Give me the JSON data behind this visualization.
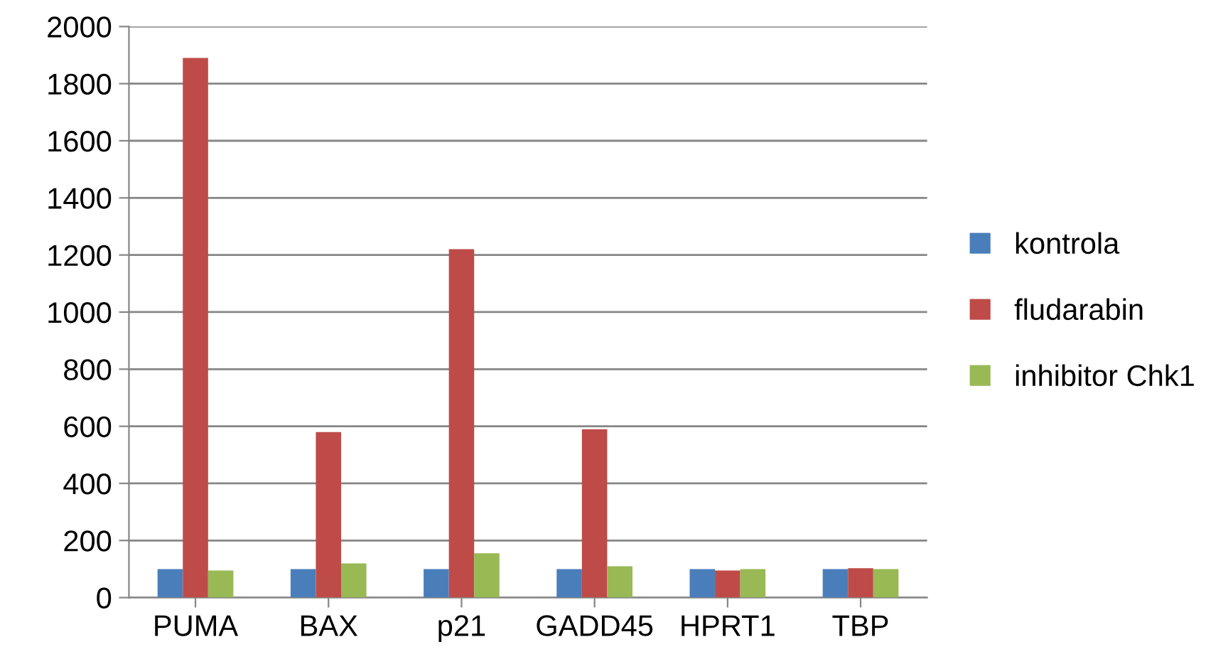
{
  "chart_data": {
    "type": "bar",
    "categories": [
      "PUMA",
      "BAX",
      "p21",
      "GADD45",
      "HPRT1",
      "TBP"
    ],
    "series": [
      {
        "name": "kontrola",
        "color": "#4a7ebb",
        "values": [
          100,
          100,
          100,
          100,
          100,
          100
        ]
      },
      {
        "name": "fludarabin",
        "color": "#be4b48",
        "values": [
          1890,
          580,
          1220,
          590,
          95,
          103
        ]
      },
      {
        "name": "inhibitor Chk1",
        "color": "#98b954",
        "values": [
          95,
          120,
          155,
          110,
          100,
          100
        ]
      }
    ],
    "ylim": [
      0,
      2000
    ],
    "yticks": [
      0,
      200,
      400,
      600,
      800,
      1000,
      1200,
      1400,
      1600,
      1800,
      2000
    ],
    "grid": "y",
    "legend": "right"
  }
}
